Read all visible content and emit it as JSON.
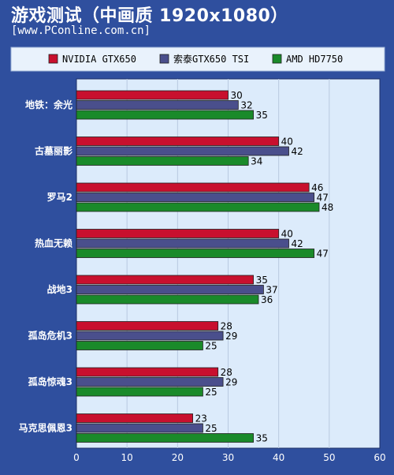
{
  "title": "游戏测试（中画质 1920x1080）",
  "subtitle": "[www.PConline.com.cn]",
  "colors": {
    "background": "#2f4f9e",
    "plot_area": "#dcebfb",
    "legend_box": "#e9f2fc"
  },
  "chart_data": {
    "type": "bar",
    "orientation": "horizontal",
    "categories": [
      "地铁：余光",
      "古墓丽影",
      "罗马2",
      "热血无赖",
      "战地3",
      "孤岛危机3",
      "孤岛惊魂3",
      "马克思佩恩3"
    ],
    "series": [
      {
        "name": "NVIDIA GTX650",
        "color": "#c8102e",
        "values": [
          30,
          40,
          46,
          40,
          35,
          28,
          28,
          23
        ]
      },
      {
        "name": "索泰GTX650 TSI",
        "color": "#4a4f8c",
        "values": [
          32,
          42,
          47,
          42,
          37,
          29,
          29,
          25
        ]
      },
      {
        "name": "AMD HD7750",
        "color": "#1a8a2a",
        "values": [
          35,
          34,
          48,
          47,
          36,
          25,
          25,
          35
        ]
      }
    ],
    "xlim": [
      0,
      60
    ],
    "xticks": [
      0,
      10,
      20,
      30,
      40,
      50,
      60
    ],
    "grid": true,
    "legend_position": "top"
  }
}
